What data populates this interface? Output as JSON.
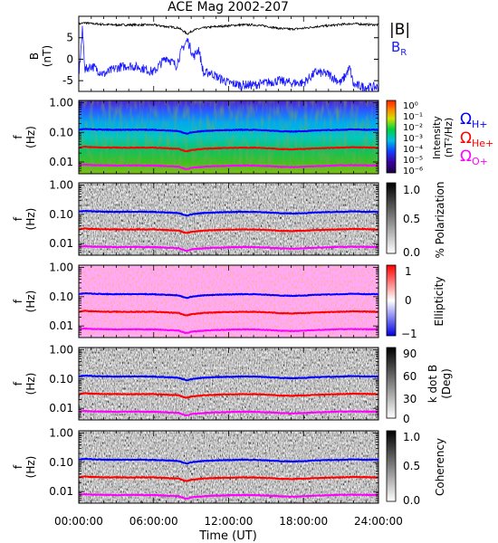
{
  "title": "ACE Mag 2002-207",
  "colors": {
    "magnitude": "#000000",
    "radial": "#1a1aff",
    "proton": "#0000ff",
    "helium": "#ff0000",
    "oxygen": "#ff00ff"
  },
  "chart_data": [
    {
      "type": "line",
      "panel": "field",
      "ylabel_line1": "B",
      "ylabel_line2": "(nT)",
      "ylim": [
        -7.5,
        10
      ],
      "yticks": [
        "5",
        "0",
        "-5"
      ],
      "ytick_values": [
        5,
        0,
        -5
      ],
      "legend": [
        "|B|",
        "B"
      ],
      "legend_subscript_r": "R",
      "series": [
        {
          "name": "|B|",
          "x_hours": [
            0,
            0.5,
            1,
            2,
            3,
            4,
            5,
            6,
            7,
            8,
            8.7,
            9.2,
            10,
            11,
            12,
            13,
            14,
            15,
            16,
            17,
            18,
            19,
            20,
            21,
            22,
            23,
            24
          ],
          "values": [
            8.2,
            8.5,
            8.3,
            8.1,
            8.0,
            8.0,
            8.0,
            8.0,
            7.6,
            7.3,
            5.9,
            6.8,
            7.3,
            7.6,
            7.8,
            8.0,
            8.0,
            7.7,
            7.2,
            7.0,
            7.2,
            7.6,
            7.8,
            8.1,
            8.3,
            8.1,
            8.0
          ]
        },
        {
          "name": "B",
          "x_hours": [
            0,
            0.3,
            0.5,
            1,
            2,
            3,
            4,
            5,
            6,
            7,
            7.8,
            8.3,
            8.7,
            9.2,
            9.6,
            10,
            10.5,
            11,
            12,
            13,
            14,
            15,
            16,
            17,
            18,
            19,
            20,
            21,
            21.7,
            22,
            23,
            24
          ],
          "values": [
            -4,
            7,
            -2.5,
            -1.5,
            -3.5,
            -2.0,
            -1.5,
            -2.0,
            -3.0,
            0.5,
            -1.5,
            2.5,
            4.5,
            0.5,
            2.5,
            -3.5,
            -3.0,
            -4.0,
            -5.5,
            -6.0,
            -6.0,
            -5.5,
            -5.0,
            -5.5,
            -5.5,
            -3.0,
            -3.5,
            -5.5,
            -2.0,
            -6.0,
            -6.5,
            -6.5
          ]
        }
      ]
    },
    {
      "type": "heatmap",
      "panel": "intensity",
      "ylabel_line1": "f",
      "ylabel_line2": "(Hz)",
      "colorbar_label": "Intensity",
      "colorbar_unit": "(nT²/Hz)",
      "colorbar_ticks": [
        "10⁰",
        "10⁻¹",
        "10⁻²",
        "10⁻³",
        "10⁻⁴",
        "10⁻⁵",
        "10⁻⁶"
      ],
      "colorscale": "rainbow"
    },
    {
      "type": "heatmap",
      "panel": "polarization",
      "ylabel_line1": "f",
      "ylabel_line2": "(Hz)",
      "colorbar_label": "% Polarization",
      "colorbar_ticks": [
        "1.0",
        "0.5",
        "0.0"
      ],
      "colorscale": "grayscale"
    },
    {
      "type": "heatmap",
      "panel": "ellipticity",
      "ylabel_line1": "f",
      "ylabel_line2": "(Hz)",
      "colorbar_label": "Ellipticity",
      "colorbar_ticks": [
        "1",
        "0",
        "−1"
      ],
      "colorscale": "blue-white-red"
    },
    {
      "type": "heatmap",
      "panel": "kdotb",
      "ylabel_line1": "f",
      "ylabel_line2": "(Hz)",
      "colorbar_label": "k dot B",
      "colorbar_unit": "(Deg)",
      "colorbar_ticks": [
        "90",
        "60",
        "30",
        "0"
      ],
      "colorscale": "grayscale"
    },
    {
      "type": "heatmap",
      "panel": "coherency",
      "ylabel_line1": "f",
      "ylabel_line2": "(Hz)",
      "colorbar_label": "Coherency",
      "colorbar_ticks": [
        "1.0",
        "0.5",
        "0.0"
      ],
      "colorscale": "grayscale"
    }
  ],
  "frequency_axis": {
    "scale": "log",
    "range_hz": [
      0.004,
      1.2
    ],
    "tick_labels": [
      "1.00",
      "0.10",
      "0.01"
    ],
    "tick_values": [
      1.0,
      0.1,
      0.01
    ]
  },
  "gyrofrequency_lines": {
    "labels": [
      {
        "glyph": "Ω",
        "sub": "H+"
      },
      {
        "glyph": "Ω",
        "sub": "He+"
      },
      {
        "glyph": "Ω",
        "sub": "O+"
      }
    ],
    "x_hours": [
      0,
      0.5,
      1,
      2,
      3,
      4,
      5,
      6,
      7,
      8,
      8.6,
      9.0,
      9.5,
      10,
      11,
      12,
      13,
      14,
      15,
      16,
      17,
      18,
      19,
      20,
      21,
      22,
      23,
      24
    ],
    "proton_hz": [
      0.125,
      0.13,
      0.127,
      0.123,
      0.122,
      0.122,
      0.122,
      0.122,
      0.116,
      0.111,
      0.09,
      0.1,
      0.106,
      0.111,
      0.116,
      0.119,
      0.122,
      0.122,
      0.117,
      0.11,
      0.107,
      0.11,
      0.116,
      0.119,
      0.123,
      0.126,
      0.123,
      0.122
    ],
    "helium_ratio": 0.25,
    "oxygen_ratio": 0.0625
  },
  "x_axis": {
    "label": "Time (UT)",
    "range_hours": [
      0,
      24
    ],
    "tick_labels": [
      "00:00:00",
      "06:00:00",
      "12:00:00",
      "18:00:00",
      "24:00:00"
    ],
    "tick_hours": [
      0,
      6,
      12,
      18,
      24
    ]
  }
}
